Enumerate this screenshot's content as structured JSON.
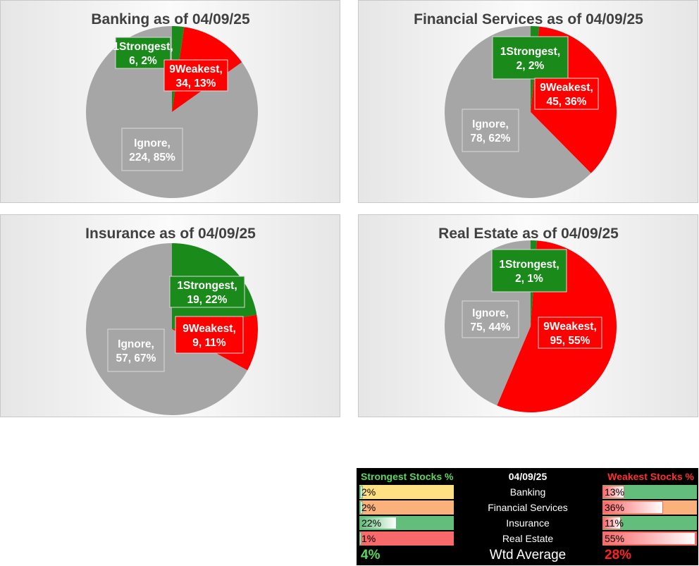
{
  "chart_data": [
    {
      "type": "pie",
      "title": "Banking as of 04/09/25",
      "slices": [
        {
          "name": "1Strongest",
          "value": 6,
          "pct": "2%",
          "color": "#1a8a1a"
        },
        {
          "name": "9Weakest",
          "value": 34,
          "pct": "13%",
          "color": "#ff0000"
        },
        {
          "name": "Ignore",
          "value": 224,
          "pct": "85%",
          "color": "#a6a6a6"
        }
      ]
    },
    {
      "type": "pie",
      "title": "Financial Services as of 04/09/25",
      "slices": [
        {
          "name": "1Strongest",
          "value": 2,
          "pct": "2%",
          "color": "#1a8a1a"
        },
        {
          "name": "9Weakest",
          "value": 45,
          "pct": "36%",
          "color": "#ff0000"
        },
        {
          "name": "Ignore",
          "value": 78,
          "pct": "62%",
          "color": "#a6a6a6"
        }
      ]
    },
    {
      "type": "pie",
      "title": "Insurance as of 04/09/25",
      "slices": [
        {
          "name": "1Strongest",
          "value": 19,
          "pct": "22%",
          "color": "#1a8a1a"
        },
        {
          "name": "9Weakest",
          "value": 9,
          "pct": "11%",
          "color": "#ff0000"
        },
        {
          "name": "Ignore",
          "value": 57,
          "pct": "67%",
          "color": "#a6a6a6"
        }
      ]
    },
    {
      "type": "pie",
      "title": "Real Estate as of 04/09/25",
      "slices": [
        {
          "name": "1Strongest",
          "value": 2,
          "pct": "1%",
          "color": "#1a8a1a"
        },
        {
          "name": "9Weakest",
          "value": 95,
          "pct": "55%",
          "color": "#ff0000"
        },
        {
          "name": "Ignore",
          "value": 75,
          "pct": "44%",
          "color": "#a6a6a6"
        }
      ]
    }
  ],
  "summary": {
    "strong_header": "Strongest Stocks %",
    "date": "04/09/25",
    "weak_header": "Weakest Stocks %",
    "rows": [
      {
        "sector": "Banking",
        "strong": "2%",
        "strong_value": 2,
        "strong_bg": "#ffe083",
        "weak": "13%",
        "weak_value": 13,
        "weak_bg": "#63be7b"
      },
      {
        "sector": "Financial Services",
        "strong": "2%",
        "strong_value": 2,
        "strong_bg": "#fbb17b",
        "weak": "36%",
        "weak_value": 36,
        "weak_bg": "#fbb17b"
      },
      {
        "sector": "Insurance",
        "strong": "22%",
        "strong_value": 22,
        "strong_bg": "#63be7b",
        "weak": "11%",
        "weak_value": 11,
        "weak_bg": "#63be7b"
      },
      {
        "sector": "Real Estate",
        "strong": "1%",
        "strong_value": 1,
        "strong_bg": "#f8696b",
        "weak": "55%",
        "weak_value": 55,
        "weak_bg": "#f8696b"
      }
    ],
    "avg_label": "Wtd Average",
    "avg_strong": "4%",
    "avg_weak": "28%"
  }
}
